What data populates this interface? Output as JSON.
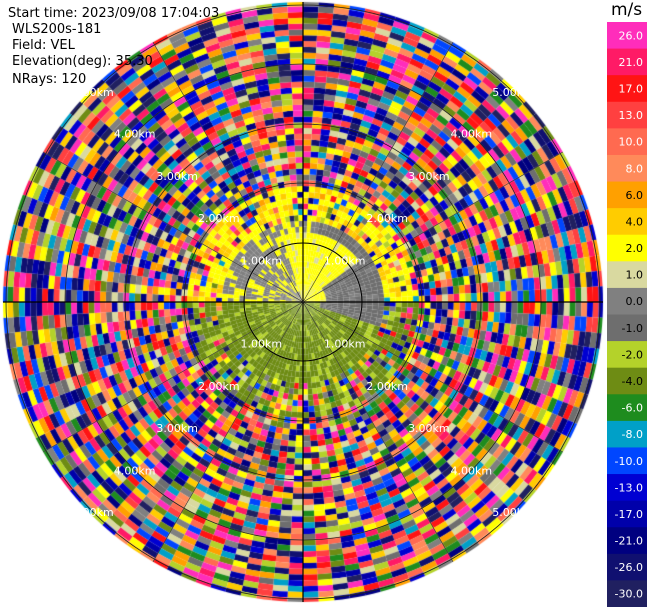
{
  "header": {
    "start_time": "Start time: 2023/09/08 17:04:03",
    "site": "WLS200s-181",
    "field": "Field: VEL",
    "elevation": "Elevation(deg): 35.30",
    "nrays": "NRays: 120"
  },
  "colorbar": {
    "unit": "m/s",
    "levels": [
      "26.0",
      "21.0",
      "17.0",
      "13.0",
      "10.0",
      "8.0",
      "6.0",
      "4.0",
      "2.0",
      "1.0",
      "0.0",
      "-1.0",
      "-2.0",
      "-4.0",
      "-6.0",
      "-8.0",
      "-10.0",
      "-13.0",
      "-17.0",
      "-21.0",
      "-26.0",
      "-30.0"
    ],
    "colors": [
      "#ff2dbb",
      "#ff1a66",
      "#ff1414",
      "#ff4040",
      "#ff6a50",
      "#ff8a5a",
      "#ffa000",
      "#ffcc00",
      "#ffff00",
      "#d9d9a0",
      "#808080",
      "#6e6e6e",
      "#b4d22a",
      "#6e8c14",
      "#1e8c1e",
      "#00a0c8",
      "#0046ff",
      "#0000d2",
      "#0000aa",
      "#000080",
      "#101070",
      "#202060"
    ]
  },
  "range_rings": {
    "labels": [
      "1.00km",
      "2.00km",
      "3.00km",
      "4.00km",
      "5.00km"
    ],
    "ring_values_km": [
      1,
      2,
      3,
      4,
      5
    ]
  }
}
